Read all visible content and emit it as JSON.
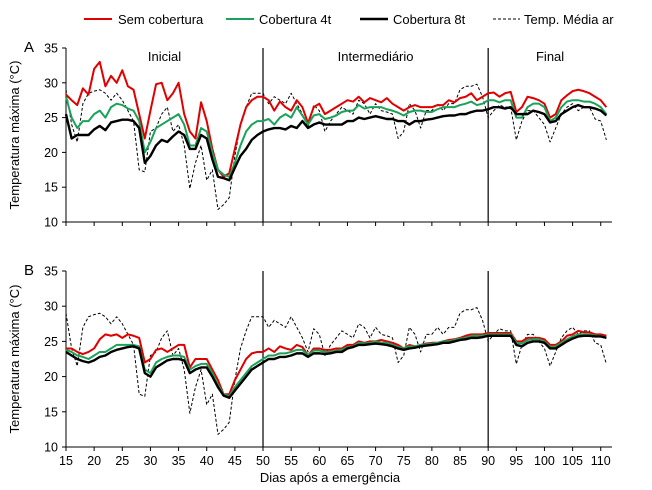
{
  "chart_data": {
    "type": "line",
    "xlabel": "Dias após a emergência",
    "ylabel": "Temperatura máxima (°C)",
    "legend": {
      "placement": "top",
      "entries": [
        "Sem cobertura",
        "Cobertura 4t",
        "Cobertura 8t",
        "Temp. Média ar"
      ]
    },
    "series_styles": [
      {
        "color": "#e00000",
        "dash": "",
        "width": 2
      },
      {
        "color": "#1aa25a",
        "dash": "",
        "width": 2
      },
      {
        "color": "#000000",
        "dash": "",
        "width": 2.4
      },
      {
        "color": "#000000",
        "dash": "3,2",
        "width": 1
      }
    ],
    "x": [
      15,
      16,
      17,
      18,
      19,
      20,
      21,
      22,
      23,
      24,
      25,
      26,
      27,
      28,
      29,
      30,
      31,
      32,
      33,
      34,
      35,
      36,
      37,
      38,
      39,
      40,
      41,
      42,
      43,
      44,
      45,
      46,
      47,
      48,
      49,
      50,
      51,
      52,
      53,
      54,
      55,
      56,
      57,
      58,
      59,
      60,
      61,
      62,
      63,
      64,
      65,
      66,
      67,
      68,
      69,
      70,
      71,
      72,
      73,
      74,
      75,
      76,
      77,
      78,
      79,
      80,
      81,
      82,
      83,
      84,
      85,
      86,
      87,
      88,
      89,
      90,
      91,
      92,
      93,
      94,
      95,
      96,
      97,
      98,
      99,
      100,
      101,
      102,
      103,
      104,
      105,
      106,
      107,
      108,
      109,
      110,
      111
    ],
    "xlim": [
      15,
      112
    ],
    "xticks": [
      15,
      20,
      25,
      30,
      35,
      40,
      45,
      50,
      55,
      60,
      65,
      70,
      75,
      80,
      85,
      90,
      95,
      100,
      105,
      110
    ],
    "phase_boundaries": [
      50,
      90
    ],
    "panels": [
      {
        "label": "A",
        "ylim": [
          10,
          35
        ],
        "yticks": [
          10,
          15,
          20,
          25,
          30,
          35
        ],
        "phases": [
          {
            "label": "Inicial",
            "x": 32.5
          },
          {
            "label": "Intermediário",
            "x": 70
          },
          {
            "label": "Final",
            "x": 101
          }
        ],
        "series": [
          {
            "name": "Sem cobertura",
            "values": [
              28.3,
              27.5,
              26.8,
              29.2,
              28.3,
              32.0,
              33.0,
              29.5,
              31.0,
              30.0,
              31.8,
              29.5,
              29.0,
              25.5,
              22.0,
              26.0,
              29.8,
              30.0,
              27.5,
              28.5,
              30.0,
              25.5,
              23.0,
              22.0,
              27.2,
              24.5,
              20.5,
              17.5,
              16.5,
              17.0,
              20.5,
              24.0,
              26.5,
              27.5,
              28.0,
              28.0,
              27.5,
              26.0,
              27.3,
              26.5,
              26.0,
              27.5,
              26.5,
              24.2,
              26.5,
              27.0,
              25.5,
              26.0,
              26.5,
              27.0,
              27.5,
              27.3,
              28.0,
              27.2,
              27.8,
              27.5,
              27.2,
              27.8,
              27.0,
              26.5,
              26.0,
              26.5,
              26.8,
              26.5,
              26.5,
              26.5,
              26.8,
              26.8,
              27.5,
              27.2,
              27.8,
              28.0,
              28.5,
              27.5,
              28.0,
              28.5,
              28.6,
              28.0,
              28.5,
              28.7,
              25.8,
              26.5,
              28.0,
              27.8,
              27.5,
              27.0,
              25.0,
              25.5,
              27.5,
              28.2,
              28.8,
              29.0,
              28.8,
              28.5,
              28.0,
              27.5,
              26.5
            ]
          },
          {
            "name": "Cobertura 4t",
            "values": [
              28.0,
              25.0,
              23.5,
              24.5,
              24.5,
              25.5,
              26.0,
              25.0,
              26.5,
              27.0,
              26.8,
              26.3,
              26.0,
              24.5,
              20.0,
              21.5,
              23.5,
              24.0,
              24.5,
              25.0,
              25.5,
              24.0,
              21.0,
              21.0,
              23.5,
              23.0,
              20.0,
              17.5,
              16.8,
              16.5,
              18.5,
              21.0,
              23.0,
              24.0,
              24.5,
              24.5,
              24.8,
              24.0,
              25.0,
              25.5,
              25.0,
              26.5,
              25.3,
              24.0,
              25.3,
              25.5,
              24.8,
              25.0,
              25.3,
              25.8,
              26.0,
              26.0,
              26.8,
              26.3,
              26.5,
              26.5,
              26.5,
              26.2,
              26.0,
              25.7,
              25.3,
              25.8,
              26.0,
              26.0,
              25.8,
              25.8,
              26.2,
              26.5,
              26.5,
              26.5,
              26.8,
              27.0,
              27.3,
              26.8,
              27.0,
              27.5,
              27.5,
              27.2,
              27.5,
              27.5,
              25.0,
              25.0,
              26.5,
              27.0,
              27.0,
              26.5,
              24.5,
              25.0,
              26.5,
              27.3,
              27.5,
              27.5,
              27.3,
              27.3,
              27.0,
              26.5,
              25.5
            ]
          },
          {
            "name": "Cobertura 8t",
            "values": [
              25.5,
              22.0,
              22.5,
              22.5,
              22.5,
              23.3,
              23.8,
              23.2,
              24.3,
              24.5,
              24.7,
              24.7,
              24.5,
              23.5,
              18.5,
              19.5,
              21.0,
              21.8,
              21.5,
              22.3,
              23.0,
              22.5,
              20.5,
              20.5,
              22.5,
              22.0,
              19.0,
              16.5,
              16.3,
              16.0,
              17.8,
              19.5,
              20.5,
              21.8,
              22.5,
              23.0,
              23.3,
              23.5,
              23.5,
              23.3,
              23.8,
              23.5,
              24.5,
              23.5,
              24.0,
              24.3,
              24.0,
              24.0,
              24.0,
              24.0,
              24.5,
              24.5,
              25.0,
              24.8,
              25.0,
              25.2,
              25.0,
              24.8,
              24.8,
              24.5,
              24.5,
              24.0,
              24.5,
              24.5,
              24.7,
              24.8,
              25.0,
              25.2,
              25.3,
              25.3,
              25.5,
              25.5,
              25.8,
              26.0,
              26.0,
              26.2,
              26.5,
              26.5,
              26.3,
              26.5,
              25.5,
              25.5,
              25.5,
              26.0,
              25.8,
              25.5,
              24.3,
              24.5,
              25.5,
              26.0,
              26.5,
              26.8,
              26.5,
              26.5,
              26.3,
              26.0,
              25.3
            ]
          },
          {
            "name": "Temp. Média ar",
            "values": [
              29.0,
              24.0,
              21.5,
              27.0,
              28.5,
              28.8,
              29.0,
              28.5,
              27.5,
              28.5,
              27.5,
              26.0,
              24.5,
              17.5,
              17.2,
              23.0,
              23.5,
              25.5,
              26.5,
              23.0,
              24.0,
              21.0,
              14.8,
              18.5,
              21.0,
              16.0,
              17.5,
              11.8,
              12.5,
              13.5,
              19.5,
              24.0,
              26.5,
              28.5,
              28.5,
              28.5,
              27.0,
              28.0,
              27.5,
              27.0,
              28.5,
              27.0,
              25.5,
              23.5,
              26.8,
              26.0,
              23.0,
              24.5,
              25.5,
              26.5,
              26.0,
              25.5,
              27.5,
              27.0,
              25.5,
              27.0,
              26.0,
              25.8,
              25.5,
              22.0,
              23.0,
              27.0,
              26.0,
              23.5,
              26.0,
              26.0,
              27.0,
              26.0,
              27.0,
              27.0,
              29.0,
              29.5,
              29.5,
              29.8,
              28.0,
              25.0,
              26.0,
              26.8,
              26.5,
              26.5,
              21.8,
              24.5,
              26.0,
              26.0,
              25.0,
              24.0,
              21.5,
              23.5,
              25.5,
              26.5,
              27.0,
              26.0,
              26.5,
              26.5,
              24.8,
              24.5,
              21.8
            ]
          }
        ]
      },
      {
        "label": "B",
        "ylim": [
          10,
          35
        ],
        "yticks": [
          10,
          15,
          20,
          25,
          30,
          35
        ],
        "phases": [],
        "series": [
          {
            "name": "Sem cobertura",
            "values": [
              24.0,
              24.0,
              23.5,
              23.2,
              23.5,
              24.0,
              25.3,
              26.0,
              25.8,
              26.0,
              25.5,
              26.0,
              25.8,
              25.5,
              22.0,
              22.5,
              23.8,
              24.0,
              23.5,
              24.0,
              24.5,
              24.5,
              21.3,
              22.5,
              22.5,
              22.5,
              21.0,
              19.5,
              17.5,
              17.5,
              19.5,
              21.0,
              22.5,
              23.3,
              23.5,
              23.5,
              24.0,
              23.5,
              24.3,
              24.0,
              23.8,
              24.5,
              24.2,
              23.0,
              24.0,
              24.0,
              23.8,
              23.8,
              24.0,
              24.0,
              24.5,
              24.5,
              25.0,
              24.8,
              25.0,
              25.0,
              25.2,
              25.0,
              24.8,
              24.5,
              24.0,
              24.5,
              24.3,
              24.5,
              24.7,
              24.8,
              24.8,
              25.0,
              25.2,
              25.3,
              25.5,
              25.8,
              26.0,
              26.0,
              26.0,
              26.2,
              26.2,
              26.2,
              26.2,
              26.2,
              25.0,
              25.0,
              25.5,
              25.5,
              25.5,
              25.3,
              24.5,
              24.5,
              25.0,
              25.8,
              26.0,
              26.5,
              26.3,
              26.3,
              26.0,
              26.0,
              25.8
            ]
          },
          {
            "name": "Cobertura 4t",
            "values": [
              23.8,
              23.5,
              23.0,
              22.8,
              22.5,
              23.0,
              23.5,
              23.5,
              24.0,
              24.5,
              24.5,
              24.5,
              24.5,
              24.3,
              21.0,
              20.5,
              22.0,
              22.5,
              22.8,
              23.0,
              23.0,
              22.8,
              21.0,
              21.5,
              21.8,
              21.8,
              20.5,
              18.8,
              17.5,
              17.2,
              18.5,
              19.5,
              20.5,
              21.5,
              22.0,
              22.5,
              23.0,
              23.0,
              23.3,
              23.3,
              23.5,
              23.8,
              23.8,
              23.0,
              23.7,
              23.7,
              23.5,
              23.5,
              23.7,
              23.8,
              24.2,
              24.3,
              24.8,
              24.7,
              24.8,
              25.0,
              24.8,
              24.8,
              24.5,
              24.2,
              24.0,
              24.3,
              24.3,
              24.5,
              24.6,
              24.7,
              24.8,
              25.0,
              25.0,
              25.2,
              25.4,
              25.5,
              25.8,
              25.8,
              25.8,
              26.0,
              26.0,
              26.0,
              26.0,
              26.0,
              24.8,
              24.7,
              25.2,
              25.3,
              25.3,
              25.0,
              24.2,
              24.3,
              24.8,
              25.3,
              25.7,
              26.0,
              26.0,
              26.0,
              25.8,
              25.8,
              25.5
            ]
          },
          {
            "name": "Cobertura 8t",
            "values": [
              23.5,
              23.0,
              22.5,
              22.2,
              22.0,
              22.3,
              22.8,
              23.0,
              23.5,
              23.8,
              24.0,
              24.2,
              24.3,
              24.0,
              20.5,
              20.0,
              21.3,
              21.8,
              22.3,
              22.5,
              22.5,
              22.3,
              20.5,
              21.0,
              21.3,
              21.3,
              20.0,
              18.5,
              17.3,
              17.0,
              18.0,
              19.0,
              20.0,
              21.0,
              21.5,
              22.0,
              22.5,
              22.5,
              22.8,
              22.8,
              23.0,
              23.3,
              23.3,
              22.8,
              23.3,
              23.3,
              23.2,
              23.3,
              23.5,
              23.5,
              24.0,
              24.2,
              24.5,
              24.5,
              24.6,
              24.7,
              24.6,
              24.5,
              24.3,
              24.0,
              23.8,
              24.0,
              24.1,
              24.3,
              24.4,
              24.5,
              24.6,
              24.8,
              24.8,
              25.0,
              25.2,
              25.3,
              25.5,
              25.5,
              25.6,
              25.8,
              25.8,
              25.8,
              25.8,
              25.8,
              24.5,
              24.3,
              24.8,
              25.0,
              25.0,
              24.8,
              24.0,
              24.0,
              24.5,
              25.0,
              25.4,
              25.7,
              25.8,
              25.8,
              25.7,
              25.7,
              25.5
            ]
          },
          {
            "name": "Temp. Média ar",
            "values": [
              29.0,
              24.0,
              21.5,
              27.0,
              28.5,
              28.8,
              29.0,
              28.5,
              27.5,
              28.5,
              27.5,
              26.0,
              24.5,
              17.5,
              17.2,
              23.0,
              23.5,
              25.5,
              26.5,
              23.0,
              24.0,
              21.0,
              14.8,
              18.5,
              21.0,
              16.0,
              17.5,
              11.8,
              12.5,
              13.5,
              19.5,
              24.0,
              26.5,
              28.5,
              28.5,
              28.5,
              27.0,
              28.0,
              27.5,
              27.0,
              28.5,
              27.0,
              25.5,
              23.5,
              26.8,
              26.0,
              23.0,
              24.5,
              25.5,
              26.5,
              26.0,
              25.5,
              27.5,
              27.0,
              25.5,
              27.0,
              26.0,
              25.8,
              25.5,
              22.0,
              23.0,
              27.0,
              26.0,
              23.5,
              26.0,
              26.0,
              27.0,
              26.0,
              27.0,
              27.0,
              29.0,
              29.5,
              29.5,
              29.8,
              28.0,
              25.0,
              26.0,
              26.8,
              26.5,
              26.5,
              21.8,
              24.5,
              26.0,
              26.0,
              25.0,
              24.0,
              21.5,
              23.5,
              25.5,
              26.5,
              27.0,
              26.0,
              26.5,
              26.5,
              24.8,
              24.5,
              21.8
            ]
          }
        ]
      }
    ]
  }
}
